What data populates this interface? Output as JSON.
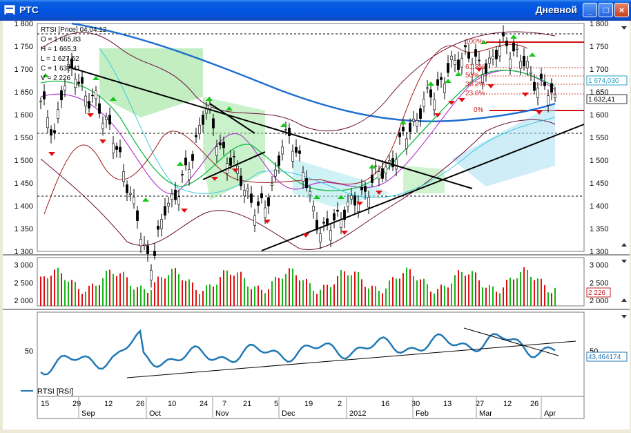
{
  "window": {
    "title": "РТС",
    "timeframe": "Дневной",
    "buttons": {
      "minimize": "_",
      "maximize": "□",
      "close": "×"
    }
  },
  "price_panel": {
    "info_lines": [
      "RTSI [Price] 04.04.12",
      "O = 1 665,83",
      "H = 1 665,3",
      "L = 1 627,52",
      "C = 1 632,41",
      "V = 2 226"
    ],
    "y_ticks": [
      "1 800",
      "1 750",
      "1 700",
      "1 650",
      "1 600",
      "1 550",
      "1 500",
      "1 450",
      "1 400",
      "1 350",
      "1 300"
    ],
    "last_price_label": "1 632,41",
    "indicator_label": "1 674,030",
    "fib_labels": [
      "100%",
      "61.8%",
      "50%",
      "38.2%",
      "23.6%",
      "0%"
    ]
  },
  "volume_panel": {
    "y_ticks": [
      "3 000",
      "2 500",
      "2 000"
    ],
    "last_volume_label": "2 226"
  },
  "rsi_panel": {
    "y_tick": "50",
    "value_label": "43,464174",
    "legend_label": "RTSI [RSI]"
  },
  "x_axis": {
    "day_ticks": [
      "15",
      "29",
      "12",
      "26",
      "10",
      "24",
      "7",
      "21",
      "5",
      "19",
      "2",
      "16",
      "30",
      "13",
      "27",
      "12",
      "26"
    ],
    "month_ticks": [
      "Sep",
      "Oct",
      "Nov",
      "Dec",
      "2012",
      "Feb",
      "Mar",
      "Apr"
    ]
  },
  "chart_data": {
    "type": "candlestick",
    "series_name": "RTSI",
    "date_range": [
      "Sep",
      "Apr"
    ],
    "ylim": [
      1300,
      1800
    ],
    "approx_closes": [
      1620,
      1600,
      1560,
      1640,
      1690,
      1705,
      1650,
      1620,
      1640,
      1600,
      1560,
      1520,
      1480,
      1420,
      1360,
      1300,
      1280,
      1330,
      1400,
      1420,
      1440,
      1470,
      1520,
      1590,
      1610,
      1560,
      1530,
      1500,
      1480,
      1460,
      1420,
      1380,
      1400,
      1430,
      1480,
      1540,
      1560,
      1510,
      1460,
      1400,
      1360,
      1340,
      1360,
      1380,
      1400,
      1400,
      1420,
      1440,
      1460,
      1470,
      1490,
      1510,
      1540,
      1570,
      1590,
      1620,
      1640,
      1660,
      1680,
      1700,
      1720,
      1740,
      1720,
      1700,
      1710,
      1720,
      1740,
      1760,
      1740,
      1720,
      1700,
      1680,
      1660,
      1650,
      1632
    ],
    "volume_range": [
      2000,
      3000
    ],
    "last_volume": 2226,
    "rsi_last": 43.464174,
    "rsi_ref_level": 50,
    "fib_levels_pct": [
      100,
      61.8,
      50,
      38.2,
      23.6,
      0
    ],
    "colors": {
      "up": "#17b317",
      "down": "#e01010",
      "ma_long": "#1f6fd0",
      "rsi": "#1f78b4",
      "support": "#d01010"
    }
  }
}
